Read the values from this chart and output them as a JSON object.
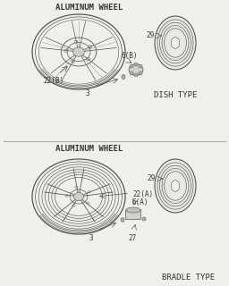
{
  "bg_color": "#f0f0eb",
  "line_color": "#555555",
  "text_color": "#333333",
  "title": "ALUMINUM WHEEL",
  "title2": "ALUMINUM WHEEL",
  "dish_label": "DISH TYPE",
  "bradle_label": "BRADLE TYPE",
  "font_size_title": 6.5,
  "font_size_label": 5.5,
  "font_size_type": 6.5
}
